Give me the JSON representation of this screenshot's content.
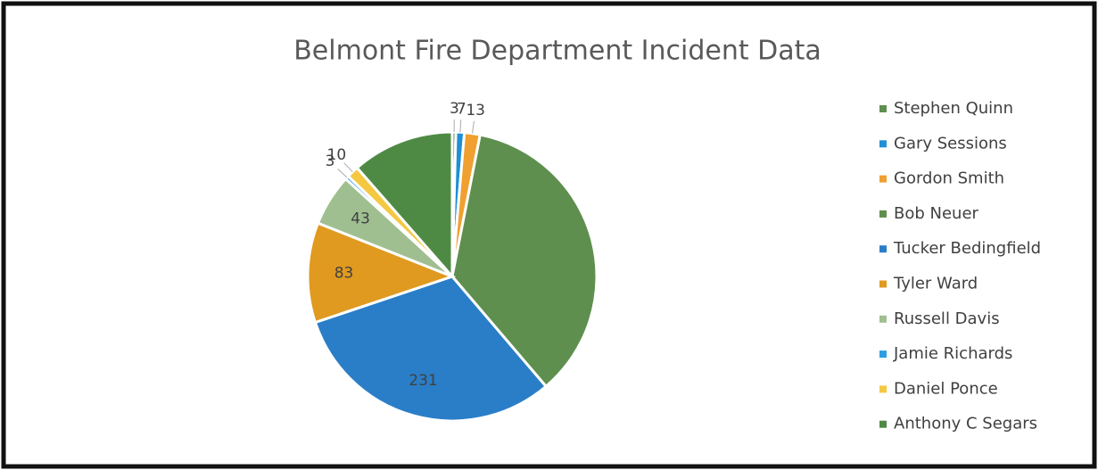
{
  "chart_data": {
    "type": "pie",
    "title": "Belmont Fire Department Incident Data",
    "series": [
      {
        "name": "Stephen Quinn",
        "color": "#5e8f4e"
      },
      {
        "name": "Gary Sessions",
        "color": "#1f8fd6"
      },
      {
        "name": "Gordon Smith",
        "color": "#f0a030"
      },
      {
        "name": "Bob Neuer",
        "color": "#5e8f4e"
      },
      {
        "name": "Tucker Bedingfield",
        "color": "#2a7ec8"
      },
      {
        "name": "Tyler Ward",
        "color": "#e09a20"
      },
      {
        "name": "Russell Davis",
        "color": "#9fbf90"
      },
      {
        "name": "Jamie Richards",
        "color": "#2a9ee0"
      },
      {
        "name": "Daniel Ponce",
        "color": "#f5c842"
      },
      {
        "name": "Anthony C Segars",
        "color": "#4f8a45"
      }
    ],
    "values": [
      3,
      7,
      13,
      265,
      231,
      83,
      43,
      3,
      10,
      85
    ],
    "value_labels": [
      "3",
      "7",
      "13",
      null,
      "231",
      "83",
      "43",
      "3",
      "10",
      null
    ],
    "legend": "right"
  }
}
